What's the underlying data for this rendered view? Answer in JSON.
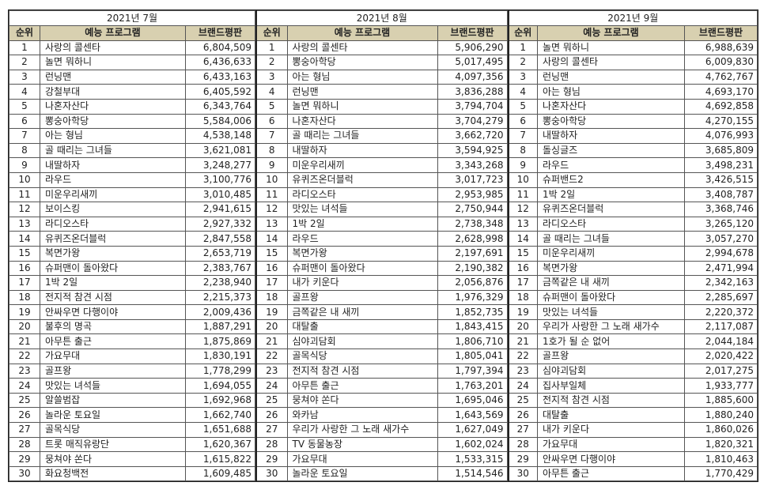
{
  "headers": {
    "rank": "순위",
    "program": "예능 프로그램",
    "score": "브랜드평판"
  },
  "colors": {
    "header_bg": "#d8d0b0"
  },
  "months": [
    {
      "title": "2021년 7월",
      "rows": [
        [
          "1",
          "사랑의 콜센타",
          "6,804,509"
        ],
        [
          "2",
          "놀면 뭐하니",
          "6,436,633"
        ],
        [
          "3",
          "런닝맨",
          "6,433,163"
        ],
        [
          "4",
          "강철부대",
          "6,405,592"
        ],
        [
          "5",
          "나혼자산다",
          "6,343,764"
        ],
        [
          "6",
          "뽕숭아학당",
          "5,584,006"
        ],
        [
          "7",
          "아는 형님",
          "4,538,148"
        ],
        [
          "8",
          "골 때리는 그녀들",
          "3,621,081"
        ],
        [
          "9",
          "내딸하자",
          "3,248,277"
        ],
        [
          "10",
          "라우드",
          "3,100,776"
        ],
        [
          "11",
          "미운우리새끼",
          "3,010,485"
        ],
        [
          "12",
          "보이스킹",
          "2,941,615"
        ],
        [
          "13",
          "라디오스타",
          "2,927,332"
        ],
        [
          "14",
          "유퀴즈온더블럭",
          "2,847,558"
        ],
        [
          "15",
          "복면가왕",
          "2,653,719"
        ],
        [
          "16",
          "슈퍼맨이 돌아왔다",
          "2,383,767"
        ],
        [
          "17",
          "1박 2일",
          "2,238,940"
        ],
        [
          "18",
          "전지적 참견 시점",
          "2,215,373"
        ],
        [
          "19",
          "안싸우면 다행이야",
          "2,009,436"
        ],
        [
          "20",
          "불후의 명곡",
          "1,887,291"
        ],
        [
          "21",
          "아무튼 출근",
          "1,875,869"
        ],
        [
          "22",
          "가요무대",
          "1,830,191"
        ],
        [
          "23",
          "골프왕",
          "1,778,299"
        ],
        [
          "24",
          "맛있는 녀석들",
          "1,694,055"
        ],
        [
          "25",
          "알쓸범잡",
          "1,692,968"
        ],
        [
          "26",
          "놀라운 토요일",
          "1,662,740"
        ],
        [
          "27",
          "골목식당",
          "1,651,688"
        ],
        [
          "28",
          "트롯 매직유랑단",
          "1,620,367"
        ],
        [
          "29",
          "뭉쳐야 쏜다",
          "1,615,822"
        ],
        [
          "30",
          "화요청백전",
          "1,609,485"
        ]
      ]
    },
    {
      "title": "2021년 8월",
      "rows": [
        [
          "1",
          "사랑의 콜센타",
          "5,906,290"
        ],
        [
          "2",
          "뽕숭아학당",
          "5,017,495"
        ],
        [
          "3",
          "아는 형님",
          "4,097,356"
        ],
        [
          "4",
          "런닝맨",
          "3,836,288"
        ],
        [
          "5",
          "놀면 뭐하니",
          "3,794,704"
        ],
        [
          "6",
          "나혼자산다",
          "3,704,279"
        ],
        [
          "7",
          "골 때리는 그녀들",
          "3,662,720"
        ],
        [
          "8",
          "내딸하자",
          "3,594,925"
        ],
        [
          "9",
          "미운우리새끼",
          "3,343,268"
        ],
        [
          "10",
          "유퀴즈온더블럭",
          "3,017,723"
        ],
        [
          "11",
          "라디오스타",
          "2,953,985"
        ],
        [
          "12",
          "맛있는 녀석들",
          "2,750,944"
        ],
        [
          "13",
          "1박 2일",
          "2,738,348"
        ],
        [
          "14",
          "라우드",
          "2,628,998"
        ],
        [
          "15",
          "복면가왕",
          "2,197,691"
        ],
        [
          "16",
          "슈퍼맨이 돌아왔다",
          "2,190,382"
        ],
        [
          "17",
          "내가 키운다",
          "2,056,876"
        ],
        [
          "18",
          "골프왕",
          "1,976,329"
        ],
        [
          "19",
          "금쪽같은 내 새끼",
          "1,852,735"
        ],
        [
          "20",
          "대탈출",
          "1,843,415"
        ],
        [
          "21",
          "심야괴담회",
          "1,806,710"
        ],
        [
          "22",
          "골목식당",
          "1,805,041"
        ],
        [
          "23",
          "전지적 참견 시점",
          "1,797,394"
        ],
        [
          "24",
          "아무튼 출근",
          "1,763,201"
        ],
        [
          "25",
          "뭉쳐야 쏜다",
          "1,695,046"
        ],
        [
          "26",
          "와카남",
          "1,643,569"
        ],
        [
          "27",
          "우리가 사랑한 그 노래 새가수",
          "1,627,049"
        ],
        [
          "28",
          "TV 동물농장",
          "1,602,024"
        ],
        [
          "29",
          "가요무대",
          "1,533,315"
        ],
        [
          "30",
          "놀라운 토요일",
          "1,514,546"
        ]
      ]
    },
    {
      "title": "2021년 9월",
      "rows": [
        [
          "1",
          "놀면 뭐하니",
          "6,988,639"
        ],
        [
          "2",
          "사랑의 콜센타",
          "6,009,830"
        ],
        [
          "3",
          "런닝맨",
          "4,762,767"
        ],
        [
          "4",
          "아는 형님",
          "4,693,170"
        ],
        [
          "5",
          "나혼자산다",
          "4,692,858"
        ],
        [
          "6",
          "뽕숭아학당",
          "4,270,155"
        ],
        [
          "7",
          "내딸하자",
          "4,076,993"
        ],
        [
          "8",
          "돌싱글즈",
          "3,685,809"
        ],
        [
          "9",
          "라우드",
          "3,498,231"
        ],
        [
          "10",
          "슈퍼밴드2",
          "3,426,515"
        ],
        [
          "11",
          "1박 2일",
          "3,408,787"
        ],
        [
          "12",
          "유퀴즈온더블럭",
          "3,368,746"
        ],
        [
          "13",
          "라디오스타",
          "3,265,120"
        ],
        [
          "14",
          "골 때리는 그녀들",
          "3,057,270"
        ],
        [
          "15",
          "미운우리새끼",
          "2,994,678"
        ],
        [
          "16",
          "복면가왕",
          "2,471,994"
        ],
        [
          "17",
          "금쪽같은 내 새끼",
          "2,342,163"
        ],
        [
          "18",
          "슈퍼맨이 돌아왔다",
          "2,285,697"
        ],
        [
          "19",
          "맛있는 녀석들",
          "2,220,372"
        ],
        [
          "20",
          "우리가 사랑한 그 노래 새가수",
          "2,117,087"
        ],
        [
          "21",
          "1호가 될 순 없어",
          "2,044,184"
        ],
        [
          "22",
          "골프왕",
          "2,020,422"
        ],
        [
          "23",
          "심야괴담회",
          "2,017,275"
        ],
        [
          "24",
          "집사부일체",
          "1,933,777"
        ],
        [
          "25",
          "전지적 참견 시점",
          "1,885,600"
        ],
        [
          "26",
          "대탈출",
          "1,880,240"
        ],
        [
          "27",
          "내가 키운다",
          "1,860,026"
        ],
        [
          "28",
          "가요무대",
          "1,820,321"
        ],
        [
          "29",
          "안싸우면 다행이야",
          "1,810,463"
        ],
        [
          "30",
          "아무튼 출근",
          "1,770,429"
        ]
      ]
    }
  ]
}
